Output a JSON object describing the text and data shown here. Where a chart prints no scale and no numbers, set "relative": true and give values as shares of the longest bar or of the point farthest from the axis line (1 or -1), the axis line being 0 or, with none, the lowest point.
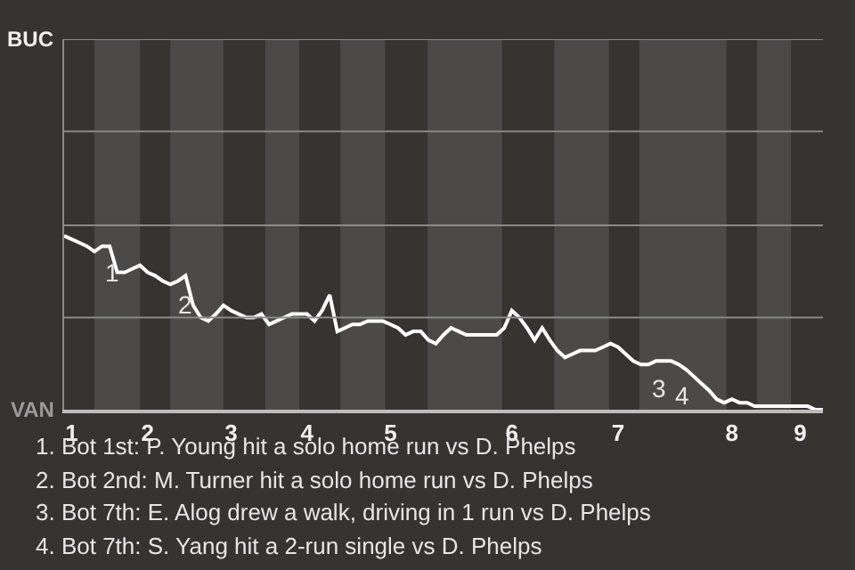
{
  "chart_data": {
    "type": "line",
    "relative": true,
    "categories": [
      null,
      "1",
      null,
      null,
      null,
      null,
      null,
      null,
      null,
      null,
      null,
      "2",
      null,
      null,
      null,
      null,
      null,
      null,
      null,
      null,
      null,
      null,
      "3",
      null,
      null,
      null,
      null,
      null,
      null,
      null,
      null,
      null,
      "4",
      null,
      null,
      null,
      null,
      null,
      null,
      null,
      null,
      null,
      null,
      "5",
      null,
      null,
      null,
      null,
      null,
      null,
      null,
      null,
      null,
      null,
      null,
      null,
      null,
      null,
      null,
      "6",
      null,
      null,
      null,
      null,
      null,
      null,
      null,
      null,
      null,
      null,
      null,
      null,
      null,
      "7",
      null,
      null,
      null,
      null,
      null,
      null,
      null,
      null,
      null,
      null,
      null,
      null,
      null,
      null,
      "8",
      null,
      null,
      null,
      null,
      null,
      null,
      null,
      null,
      "9",
      null,
      null,
      null
    ],
    "ref_lines": [
      {
        "axis": "y",
        "value": 0.53,
        "color": "#8a8a8a"
      },
      {
        "axis": "y",
        "value": 1.06,
        "color": "#8a8a8a"
      },
      {
        "axis": "y",
        "value": 1.6,
        "color": "#8a8a8a"
      },
      {
        "axis": "y",
        "value": 2.13,
        "color": "#8a8a8a"
      }
    ],
    "marker": "none",
    "line_style": "solid",
    "series": [
      {
        "color": "#ffffff",
        "values": [
          1.0,
          0.98,
          0.96,
          0.94,
          0.91,
          0.94,
          0.94,
          0.79,
          0.79,
          0.81,
          0.83,
          0.79,
          0.77,
          0.74,
          0.72,
          0.74,
          0.77,
          0.6,
          0.53,
          0.51,
          0.55,
          0.6,
          0.57,
          0.55,
          0.53,
          0.53,
          0.55,
          0.49,
          0.51,
          0.53,
          0.55,
          0.55,
          0.55,
          0.51,
          0.57,
          0.66,
          0.45,
          0.47,
          0.49,
          0.49,
          0.51,
          0.51,
          0.51,
          0.49,
          0.47,
          0.43,
          0.45,
          0.45,
          0.4,
          0.38,
          0.43,
          0.47,
          0.45,
          0.43,
          0.43,
          0.43,
          0.43,
          0.43,
          0.47,
          0.57,
          0.53,
          0.47,
          0.4,
          0.47,
          0.4,
          0.34,
          0.3,
          0.32,
          0.34,
          0.34,
          0.34,
          0.36,
          0.38,
          0.36,
          0.32,
          0.28,
          0.26,
          0.26,
          0.28,
          0.28,
          0.28,
          0.26,
          0.23,
          0.19,
          0.15,
          0.11,
          0.06,
          0.04,
          0.06,
          0.04,
          0.04,
          0.02,
          0.02,
          0.02,
          0.02,
          0.02,
          0.02,
          0.02,
          0.02,
          0,
          0
        ]
      }
    ],
    "annotations": [
      "BUC",
      "VAN",
      "1",
      "2",
      "3",
      "4",
      "1. Bot 1st: P. Young hit a solo home run vs D. Phelps",
      "2. Bot 2nd: M. Turner hit a solo home run vs D. Phelps",
      "3. Bot 7th: E. Alog drew a walk, driving in 1 run vs D. Phelps",
      "4. Bot 7th: S. Yang hit a 2-run single vs D. Phelps"
    ]
  }
}
